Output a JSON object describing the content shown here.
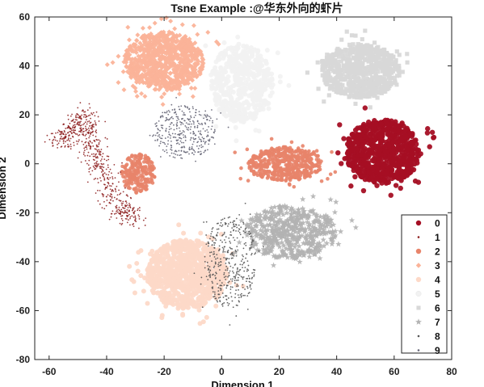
{
  "chart_data": {
    "type": "scatter",
    "title": "Tsne Example :@华东外向的虾片",
    "xlabel": "Dimension 1",
    "ylabel": "Dimension 2",
    "xlim": [
      -65,
      80
    ],
    "ylim": [
      -80,
      60
    ],
    "xticks": [
      -60,
      -40,
      -20,
      0,
      20,
      40,
      60,
      80
    ],
    "yticks": [
      -80,
      -60,
      -40,
      -20,
      0,
      20,
      40,
      60
    ],
    "grid": false,
    "legend_position": "bottom-right",
    "series": [
      {
        "name": "0",
        "color": "#a50f24",
        "marker": "circle-filled",
        "cx": 56,
        "cy": 5,
        "rx": 13,
        "ry": 13,
        "count": 700,
        "size": 3.2,
        "opacity": 0.95
      },
      {
        "name": "1",
        "color": "#8b1a1a",
        "marker": "point",
        "cx": -45,
        "cy": 0,
        "path": [
          [
            -57,
            8
          ],
          [
            -52,
            14
          ],
          [
            -48,
            20
          ],
          [
            -46,
            10
          ],
          [
            -42,
            -2
          ],
          [
            -38,
            -12
          ],
          [
            -34,
            -20
          ],
          [
            -30,
            -22
          ]
        ],
        "spread": 4,
        "count": 600,
        "size": 0.9,
        "opacity": 0.85
      },
      {
        "name": "2",
        "color": "#e8846a",
        "marker": "circle-filled",
        "cx": 22,
        "cy": 0,
        "rx": 13,
        "ry": 7,
        "count": 500,
        "size": 2.3,
        "opacity": 0.9
      },
      {
        "name": "3",
        "color": "#fbb399",
        "marker": "diamond",
        "cx": -20,
        "cy": 42,
        "rx": 14,
        "ry": 12,
        "count": 900,
        "size": 3.0,
        "opacity": 0.95
      },
      {
        "name": "4",
        "color": "#fdd9c8",
        "marker": "circle-filled",
        "cx": -12,
        "cy": -45,
        "rx": 14,
        "ry": 14,
        "count": 900,
        "size": 3.0,
        "opacity": 0.95
      },
      {
        "name": "5",
        "color": "#f2f2f2",
        "marker": "circle-filled",
        "cx": 7,
        "cy": 33,
        "rx": 11,
        "ry": 16,
        "count": 500,
        "size": 3.0,
        "opacity": 0.9
      },
      {
        "name": "6",
        "color": "#d8d8d8",
        "marker": "square",
        "cx": 48,
        "cy": 38,
        "rx": 14,
        "ry": 11,
        "count": 700,
        "size": 3.2,
        "opacity": 0.95
      },
      {
        "name": "7",
        "color": "#b3b3b3",
        "marker": "star",
        "cx": 24,
        "cy": -28,
        "rx": 16,
        "ry": 11,
        "count": 500,
        "size": 3.0,
        "opacity": 0.9
      },
      {
        "name": "8",
        "color": "#555555",
        "marker": "point",
        "cx": 3,
        "cy": -40,
        "rx": 9,
        "ry": 19,
        "count": 400,
        "size": 0.9,
        "opacity": 0.9
      },
      {
        "name": "9",
        "color": "#666677",
        "marker": "point",
        "cx": -13,
        "cy": 13,
        "rx": 11,
        "ry": 11,
        "count": 350,
        "size": 0.9,
        "opacity": 0.9
      }
    ],
    "extra_clusters": [
      {
        "series": "2",
        "cx": -29,
        "cy": -4,
        "rx": 6,
        "ry": 8,
        "count": 200
      }
    ]
  }
}
